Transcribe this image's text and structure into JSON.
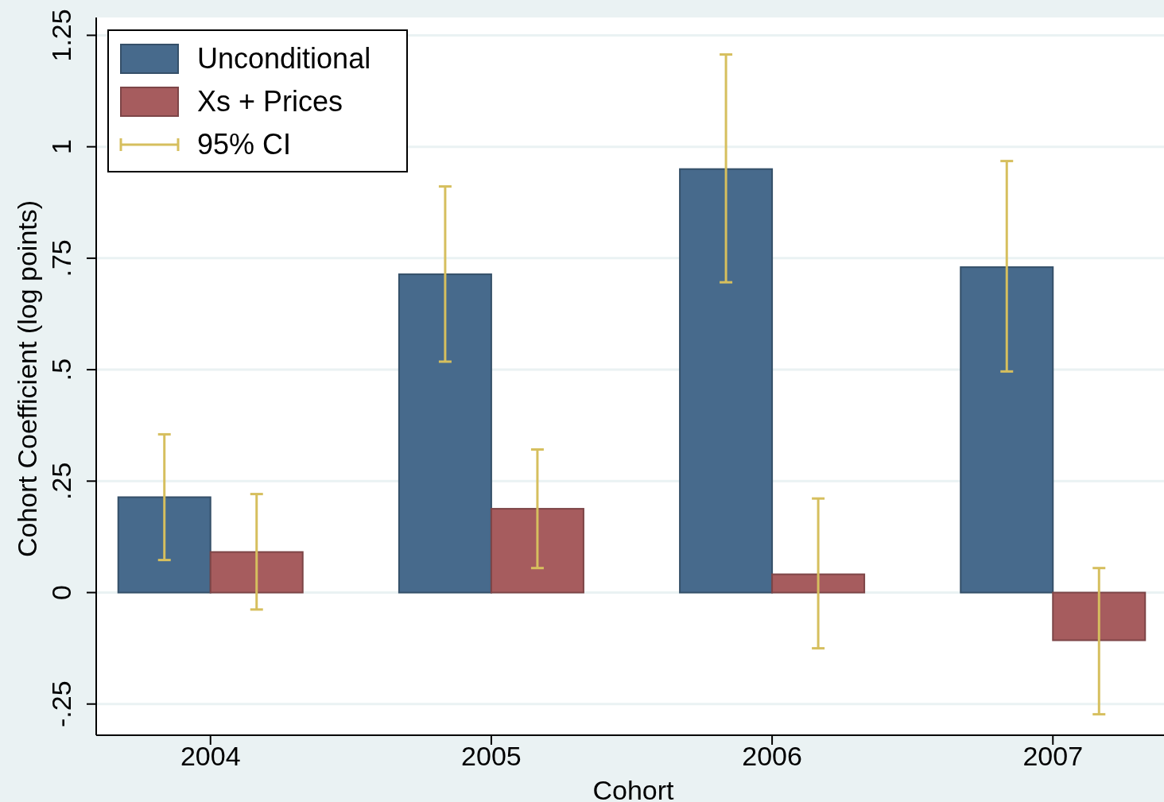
{
  "chart_data": {
    "type": "bar",
    "xlabel": "Cohort",
    "ylabel": "Cohort Coefficient (log points)",
    "categories": [
      "2004",
      "2005",
      "2006",
      "2007"
    ],
    "series": [
      {
        "name": "Unconditional",
        "color": "#476a8c",
        "values": [
          0.214,
          0.714,
          0.95,
          0.73
        ],
        "errors": [
          [
            0.073,
            0.355
          ],
          [
            0.518,
            0.911
          ],
          [
            0.696,
            1.207
          ],
          [
            0.496,
            0.968
          ]
        ]
      },
      {
        "name": "Xs + Prices",
        "color": "#a65c5e",
        "values": [
          0.091,
          0.188,
          0.041,
          -0.107
        ],
        "errors": [
          [
            -0.038,
            0.221
          ],
          [
            0.055,
            0.321
          ],
          [
            -0.125,
            0.211
          ],
          [
            -0.273,
            0.055
          ]
        ]
      }
    ],
    "annotations": [
      "95% CI"
    ],
    "ylim": [
      -0.32,
      1.29
    ],
    "yticks": [
      {
        "value": -0.25,
        "label": "-.25"
      },
      0,
      {
        "value": 0.25,
        "label": ".25"
      },
      {
        "value": 0.5,
        "label": ".5"
      },
      {
        "value": 0.75,
        "label": ".75"
      },
      1,
      1.25
    ],
    "grid": "y",
    "legend": "top left"
  }
}
